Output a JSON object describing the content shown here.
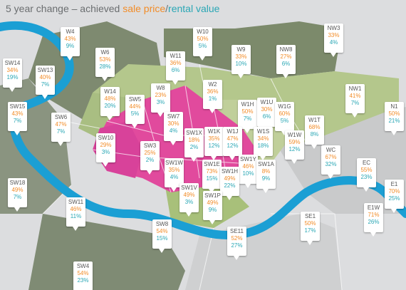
{
  "title": {
    "prefix": "5 year change – achieved ",
    "sale_label": "sale price",
    "separator": "/",
    "rent_label": "rental value"
  },
  "colors": {
    "sale": "#f28c28",
    "rent": "#2aa7b5",
    "river": "#1b9fd4",
    "prime": "#e0489e",
    "light_green": "#b5c98d",
    "dark_green": "#7d8a6e",
    "grey": "#c4c5c6"
  },
  "districts": [
    {
      "code": "W4",
      "sale": "43%",
      "rent": "9%"
    },
    {
      "code": "W10",
      "sale": "50%",
      "rent": "5%"
    },
    {
      "code": "NW3",
      "sale": "33%",
      "rent": "4%"
    },
    {
      "code": "W6",
      "sale": "53%",
      "rent": "28%"
    },
    {
      "code": "W11",
      "sale": "36%",
      "rent": "6%"
    },
    {
      "code": "W9",
      "sale": "33%",
      "rent": "10%"
    },
    {
      "code": "NW8",
      "sale": "27%",
      "rent": "6%"
    },
    {
      "code": "SW14",
      "sale": "34%",
      "rent": "19%"
    },
    {
      "code": "SW13",
      "sale": "40%",
      "rent": "7%"
    },
    {
      "code": "W2",
      "sale": "36%",
      "rent": "1%"
    },
    {
      "code": "NW1",
      "sale": "41%",
      "rent": "7%"
    },
    {
      "code": "W14",
      "sale": "48%",
      "rent": "20%"
    },
    {
      "code": "W8",
      "sale": "23%",
      "rent": "3%"
    },
    {
      "code": "SW5",
      "sale": "44%",
      "rent": "5%"
    },
    {
      "code": "W1H",
      "sale": "50%",
      "rent": "7%"
    },
    {
      "code": "W1U",
      "sale": "30%",
      "rent": "6%"
    },
    {
      "code": "W1G",
      "sale": "60%",
      "rent": "5%"
    },
    {
      "code": "SW15",
      "sale": "43%",
      "rent": "7%"
    },
    {
      "code": "N1",
      "sale": "50%",
      "rent": "21%"
    },
    {
      "code": "SW6",
      "sale": "47%",
      "rent": "7%"
    },
    {
      "code": "SW7",
      "sale": "30%",
      "rent": "4%"
    },
    {
      "code": "W1T",
      "sale": "68%",
      "rent": "8%"
    },
    {
      "code": "W1K",
      "sale": "35%",
      "rent": "12%"
    },
    {
      "code": "W1J",
      "sale": "47%",
      "rent": "12%"
    },
    {
      "code": "W1S",
      "sale": "34%",
      "rent": "18%"
    },
    {
      "code": "SW1X",
      "sale": "18%",
      "rent": "2%"
    },
    {
      "code": "W1W",
      "sale": "59%",
      "rent": "12%"
    },
    {
      "code": "SW10",
      "sale": "29%",
      "rent": "3%"
    },
    {
      "code": "SW3",
      "sale": "25%",
      "rent": "2%"
    },
    {
      "code": "WC",
      "sale": "67%",
      "rent": "32%"
    },
    {
      "code": "SW1Y",
      "sale": "46%",
      "rent": "10%"
    },
    {
      "code": "SW1W",
      "sale": "35%",
      "rent": "4%"
    },
    {
      "code": "SW1E",
      "sale": "73%",
      "rent": "15%"
    },
    {
      "code": "SW1A",
      "sale": "8%",
      "rent": "9%"
    },
    {
      "code": "SW1H",
      "sale": "49%",
      "rent": "22%"
    },
    {
      "code": "EC",
      "sale": "55%",
      "rent": "23%"
    },
    {
      "code": "SW18",
      "sale": "49%",
      "rent": "7%"
    },
    {
      "code": "E1",
      "sale": "70%",
      "rent": "25%"
    },
    {
      "code": "SW11",
      "sale": "46%",
      "rent": "11%"
    },
    {
      "code": "SW1V",
      "sale": "49%",
      "rent": "3%"
    },
    {
      "code": "SW1P",
      "sale": "49%",
      "rent": "9%"
    },
    {
      "code": "SE1",
      "sale": "50%",
      "rent": "17%"
    },
    {
      "code": "E1W",
      "sale": "71%",
      "rent": "26%"
    },
    {
      "code": "SW8",
      "sale": "54%",
      "rent": "15%"
    },
    {
      "code": "SE11",
      "sale": "52%",
      "rent": "27%"
    },
    {
      "code": "SW4",
      "sale": "54%",
      "rent": "23%"
    }
  ]
}
